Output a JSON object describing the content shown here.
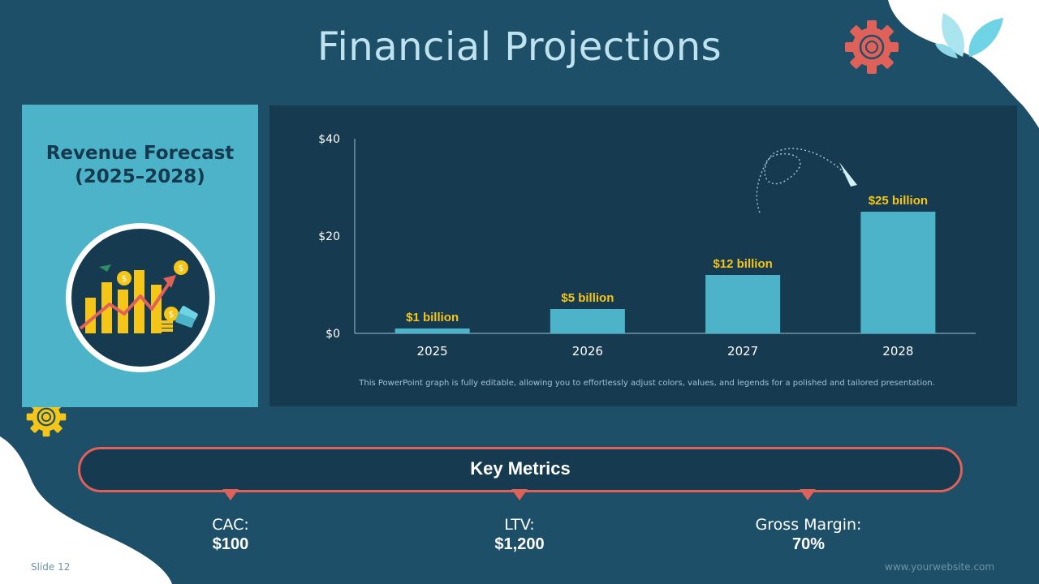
{
  "slide": {
    "title": "Financial Projections",
    "slide_number": "Slide 12",
    "website": "www.yourwebsite.com"
  },
  "panel": {
    "title_line1": "Revenue Forecast",
    "title_line2": "(2025–2028)",
    "icon": "revenue-growth-icon"
  },
  "chart_note": "This PowerPoint graph is fully editable, allowing you to effortlessly adjust colors, values, and legends for a polished and tailored presentation.",
  "chart_data": {
    "type": "bar",
    "categories": [
      "2025",
      "2026",
      "2027",
      "2028"
    ],
    "values": [
      1,
      5,
      12,
      25
    ],
    "data_labels": [
      "$1 billion",
      "$5 billion",
      "$12 billion",
      "$25 billion"
    ],
    "ylim": [
      0,
      40
    ],
    "yticks": [
      0,
      20,
      40
    ],
    "ytick_labels": [
      "$0",
      "$20",
      "$40"
    ],
    "grid": false,
    "legend": "none"
  },
  "metrics": {
    "title": "Key Metrics",
    "items": [
      {
        "label": "CAC:",
        "value": "$100"
      },
      {
        "label": "LTV:",
        "value": "$1,200"
      },
      {
        "label": "Gross Margin:",
        "value": "70%"
      }
    ]
  },
  "colors": {
    "background": "#1d5068",
    "bar": "#4cb3c9",
    "data_label": "#f5c518",
    "accent": "#e0605a",
    "panel": "#4cb3c9",
    "chart_bg": "#163a50"
  }
}
